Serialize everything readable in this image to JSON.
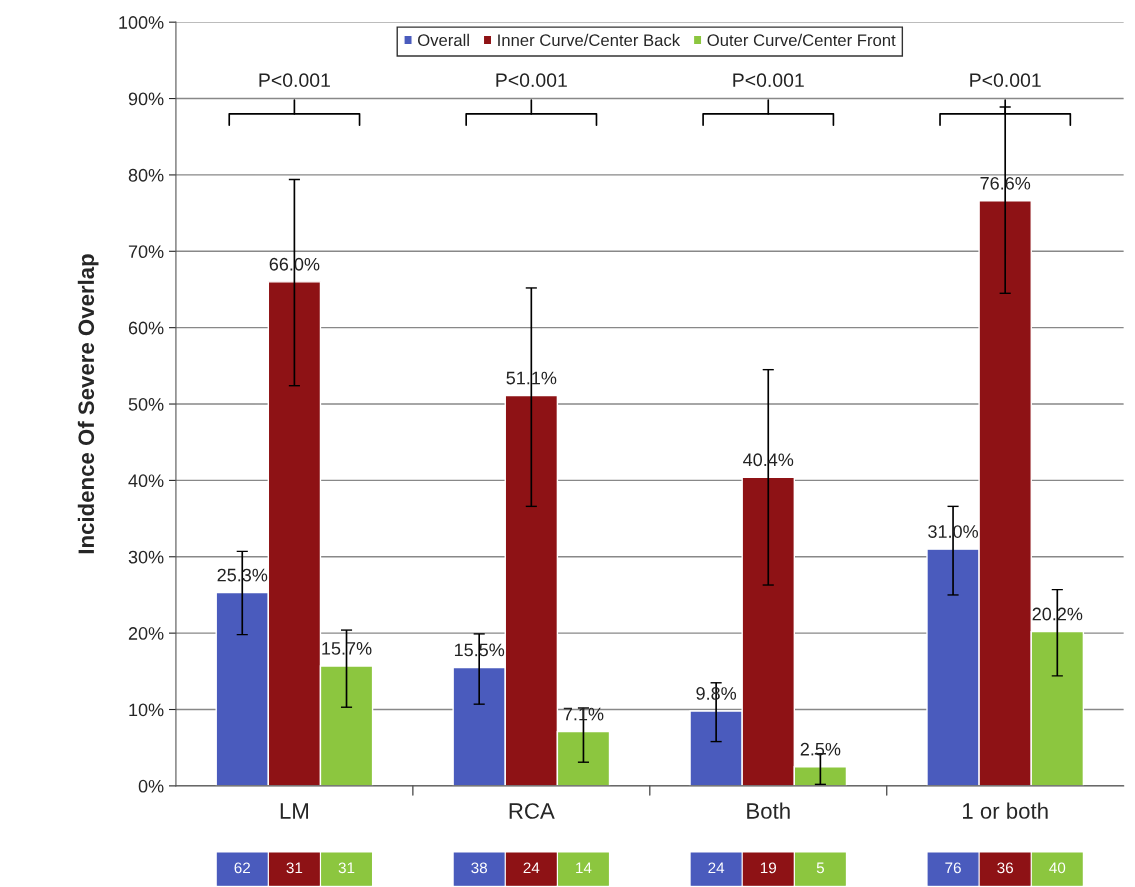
{
  "chart_data": {
    "type": "bar",
    "ylabel": "Incidence Of Severe Overlap",
    "categories": [
      "LM",
      "RCA",
      "Both",
      "1 or both"
    ],
    "series": [
      {
        "name": "Overall",
        "color": "#4a5bbd",
        "values": [
          25.3,
          15.5,
          9.8,
          31.0
        ],
        "value_labels": [
          "25.3%",
          "15.5%",
          "9.8%",
          "31.0%"
        ],
        "errors": [
          [
            19.8,
            30.7
          ],
          [
            10.7,
            19.9
          ],
          [
            5.8,
            13.5
          ],
          [
            25.0,
            36.6
          ]
        ]
      },
      {
        "name": "Inner Curve/Center Back",
        "color": "#8e1215",
        "values": [
          66.0,
          51.1,
          40.4,
          76.6
        ],
        "value_labels": [
          "66.0%",
          "51.1%",
          "40.4%",
          "76.6%"
        ],
        "errors": [
          [
            52.4,
            79.4
          ],
          [
            36.6,
            65.2
          ],
          [
            26.3,
            54.5
          ],
          [
            64.5,
            88.9
          ]
        ]
      },
      {
        "name": "Outer Curve/Center Front",
        "color": "#8cc63f",
        "values": [
          15.7,
          7.1,
          2.5,
          20.2
        ],
        "value_labels": [
          "15.7%",
          "7.1%",
          "2.5%",
          "20.2%"
        ],
        "errors": [
          [
            10.3,
            20.4
          ],
          [
            3.1,
            10.2
          ],
          [
            0.2,
            4.2
          ],
          [
            14.4,
            25.7
          ]
        ]
      }
    ],
    "ylim": [
      0,
      100
    ],
    "yticks": [
      {
        "value": 0,
        "label": "0%"
      },
      {
        "value": 10,
        "label": "10%"
      },
      {
        "value": 20,
        "label": "20%"
      },
      {
        "value": 30,
        "label": "30%"
      },
      {
        "value": 40,
        "label": "40%"
      },
      {
        "value": 50,
        "label": "50%"
      },
      {
        "value": 60,
        "label": "60%"
      },
      {
        "value": 70,
        "label": "70%"
      },
      {
        "value": 80,
        "label": "80%"
      },
      {
        "value": 90,
        "label": "90%"
      },
      {
        "value": 100,
        "label": "100%"
      }
    ],
    "grid": "y",
    "legend": "top",
    "annotations": [
      "P<0.001",
      "P<0.001",
      "P<0.001",
      "P<0.001",
      "62",
      "31",
      "31",
      "38",
      "24",
      "14",
      "24",
      "19",
      "5",
      "76",
      "36",
      "40"
    ]
  }
}
